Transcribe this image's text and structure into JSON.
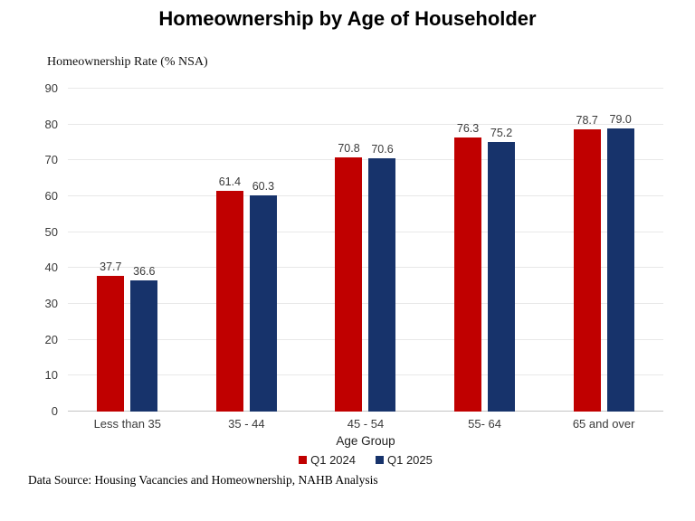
{
  "title": "Homeownership by Age of Householder",
  "footer": "Data Source: Housing Vacancies and Homeownership, NAHB Analysis",
  "colors": {
    "series_q1_2024": "#c00000",
    "series_q1_2025": "#17336b",
    "gridline": "#e8e8e8",
    "baseline": "#c4c4c4",
    "text": "#3a3a3a"
  },
  "chart_data": {
    "type": "bar",
    "title": "Homeownership by Age of Householder",
    "xlabel": "Age Group",
    "ylabel": "Homeownership Rate (% NSA)",
    "categories": [
      "Less than 35",
      "35 - 44",
      "45 - 54",
      "55- 64",
      "65 and over"
    ],
    "series": [
      {
        "name": "Q1 2024",
        "color": "#c00000",
        "values": [
          37.7,
          61.4,
          70.8,
          76.3,
          78.7
        ]
      },
      {
        "name": "Q1 2025",
        "color": "#17336b",
        "values": [
          36.6,
          60.3,
          70.6,
          75.2,
          79.0
        ]
      }
    ],
    "ylim": [
      0,
      90
    ],
    "ytick_step": 10,
    "grid": true,
    "legend_position": "bottom",
    "data_labels": true,
    "data_label_decimals": 1
  }
}
